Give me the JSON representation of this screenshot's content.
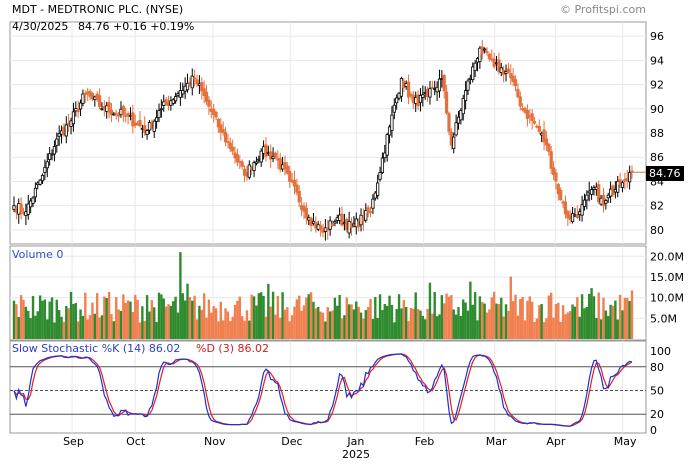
{
  "header": {
    "title": "MDT - MEDTRONIC PLC. (NYSE)",
    "date": "4/30/2025",
    "quote": "84.76 +0.16 +0.19%",
    "watermark": "© Profitspi.com"
  },
  "price_panel": {
    "last_label": "84.76",
    "y_ticks": [
      "80",
      "82",
      "84",
      "86",
      "88",
      "90",
      "92",
      "94",
      "96"
    ]
  },
  "volume_panel": {
    "label": "Volume  0",
    "y_ticks": [
      "5.0M",
      "10.0M",
      "15.0M",
      "20.0M"
    ]
  },
  "stoch_panel": {
    "label_k": "Slow Stochastic %K (14) 86.02",
    "label_d": "%D (3) 86.02",
    "y_ticks": [
      "0",
      "20",
      "50",
      "80",
      "100"
    ]
  },
  "x_axis": {
    "months": [
      "Sep",
      "Oct",
      "Nov",
      "Dec",
      "Jan",
      "Feb",
      "Mar",
      "Apr",
      "May"
    ],
    "year": "2025"
  },
  "colors": {
    "up": "#000000",
    "down": "#e4703d",
    "vol_up": "#2e8b2e",
    "vol_down": "#f08050",
    "stoch_k": "#2030d0",
    "stoch_d": "#e02020",
    "grid": "#e8e8e8",
    "frame": "#999999"
  },
  "chart_data": [
    {
      "type": "candlestick",
      "title": "MDT - MEDTRONIC PLC. (NYSE)",
      "y_range": [
        79,
        97
      ],
      "last_price": 84.76,
      "close_path": {
        "months": [
          "Sep",
          "Oct",
          "Nov",
          "Dec",
          "Jan",
          "Feb",
          "Mar",
          "Apr",
          "May"
        ],
        "keypoints": [
          {
            "bar": 0,
            "close": 82.0
          },
          {
            "bar": 5,
            "close": 81.5
          },
          {
            "bar": 12,
            "close": 84.5
          },
          {
            "bar": 18,
            "close": 87.5
          },
          {
            "bar": 24,
            "close": 89.0
          },
          {
            "bar": 30,
            "close": 91.2
          },
          {
            "bar": 38,
            "close": 90.0
          },
          {
            "bar": 46,
            "close": 89.5
          },
          {
            "bar": 56,
            "close": 88.2
          },
          {
            "bar": 62,
            "close": 90.0
          },
          {
            "bar": 70,
            "close": 91.5
          },
          {
            "bar": 76,
            "close": 92.5
          },
          {
            "bar": 82,
            "close": 90.2
          },
          {
            "bar": 86,
            "close": 88.5
          },
          {
            "bar": 92,
            "close": 86.5
          },
          {
            "bar": 97,
            "close": 84.5
          },
          {
            "bar": 104,
            "close": 86.5
          },
          {
            "bar": 110,
            "close": 86.0
          },
          {
            "bar": 116,
            "close": 84.0
          },
          {
            "bar": 124,
            "close": 81.0
          },
          {
            "bar": 130,
            "close": 79.8
          },
          {
            "bar": 136,
            "close": 81.0
          },
          {
            "bar": 142,
            "close": 80.2
          },
          {
            "bar": 150,
            "close": 81.5
          },
          {
            "bar": 158,
            "close": 88.5
          },
          {
            "bar": 163,
            "close": 92.5
          },
          {
            "bar": 168,
            "close": 90.5
          },
          {
            "bar": 174,
            "close": 91.0
          },
          {
            "bar": 180,
            "close": 92.5
          },
          {
            "bar": 184,
            "close": 87.0
          },
          {
            "bar": 190,
            "close": 91.5
          },
          {
            "bar": 196,
            "close": 95.0
          },
          {
            "bar": 202,
            "close": 93.5
          },
          {
            "bar": 208,
            "close": 93.0
          },
          {
            "bar": 214,
            "close": 90.0
          },
          {
            "bar": 220,
            "close": 88.5
          },
          {
            "bar": 224,
            "close": 87.0
          },
          {
            "bar": 230,
            "close": 82.5
          },
          {
            "bar": 233,
            "close": 81.0
          },
          {
            "bar": 238,
            "close": 81.5
          },
          {
            "bar": 244,
            "close": 83.5
          },
          {
            "bar": 248,
            "close": 82.0
          },
          {
            "bar": 254,
            "close": 84.0
          },
          {
            "bar": 260,
            "close": 84.76
          }
        ]
      }
    },
    {
      "type": "bar",
      "title": "Volume",
      "y_range": [
        0,
        22000000
      ],
      "spike": {
        "month": "Sep",
        "value": 21000000
      },
      "typical_range": [
        4000000,
        14000000
      ]
    },
    {
      "type": "line",
      "title": "Slow Stochastic",
      "y_range": [
        0,
        100
      ],
      "series": [
        {
          "name": "%K (14)",
          "last": 86.02
        },
        {
          "name": "%D (3)",
          "last": 86.02
        }
      ],
      "reference_lines": [
        20,
        50,
        80
      ]
    }
  ]
}
